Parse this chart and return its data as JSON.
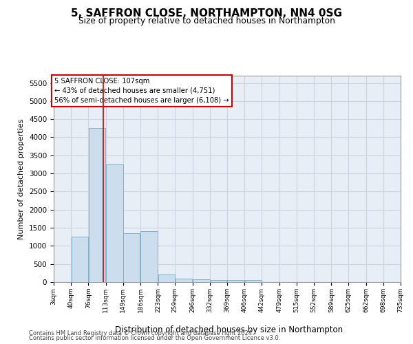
{
  "title": "5, SAFFRON CLOSE, NORTHAMPTON, NN4 0SG",
  "subtitle": "Size of property relative to detached houses in Northampton",
  "xlabel": "Distribution of detached houses by size in Northampton",
  "ylabel": "Number of detached properties",
  "footnote1": "Contains HM Land Registry data © Crown copyright and database right 2024.",
  "footnote2": "Contains public sector information licensed under the Open Government Licence v3.0.",
  "property_label": "5 SAFFRON CLOSE: 107sqm",
  "annotation_line1": "← 43% of detached houses are smaller (4,751)",
  "annotation_line2": "56% of semi-detached houses are larger (6,108) →",
  "property_size": 107,
  "bar_color": "#ccdded",
  "bar_edge_color": "#7ab3cc",
  "red_line_color": "#cc0000",
  "annotation_box_edge": "#cc0000",
  "background_color": "#ffffff",
  "plot_bg_color": "#e8eef5",
  "grid_color": "#c8d4e0",
  "bins": [
    3,
    40,
    76,
    113,
    149,
    186,
    223,
    259,
    296,
    332,
    369,
    406,
    442,
    479,
    515,
    552,
    589,
    625,
    662,
    698,
    735
  ],
  "counts": [
    0,
    1250,
    4250,
    3250,
    1350,
    1400,
    200,
    100,
    80,
    50,
    55,
    50,
    0,
    0,
    0,
    0,
    0,
    0,
    0,
    0
  ],
  "ylim": [
    0,
    5700
  ],
  "yticks": [
    0,
    500,
    1000,
    1500,
    2000,
    2500,
    3000,
    3500,
    4000,
    4500,
    5000,
    5500
  ]
}
